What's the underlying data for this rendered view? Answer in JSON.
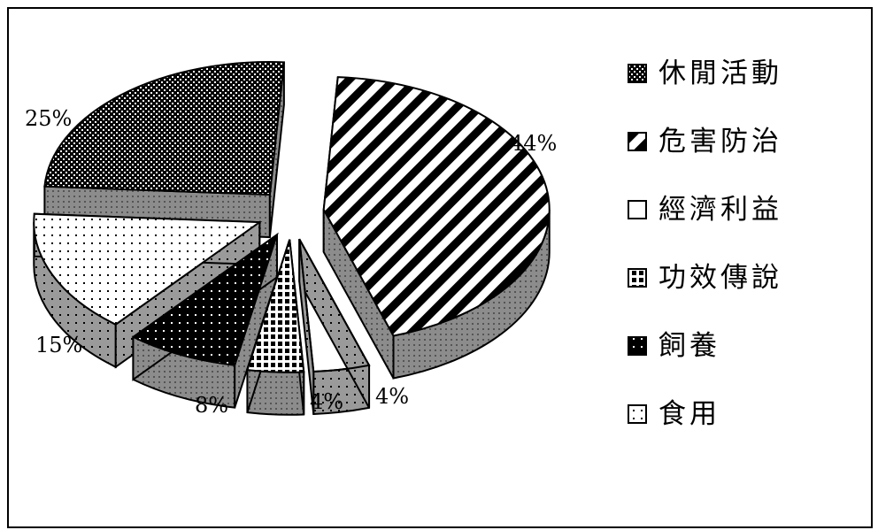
{
  "chart_data": {
    "type": "pie",
    "style": "3d-exploded",
    "title": "",
    "legend_position": "right",
    "slices": [
      {
        "label": "休閒活動",
        "value": 25,
        "text": "25%",
        "pattern": "dots-dense",
        "color": "#000000"
      },
      {
        "label": "危害防治",
        "value": 44,
        "text": "44%",
        "pattern": "diagonal-stripes",
        "color": "#000000"
      },
      {
        "label": "經濟利益",
        "value": 4,
        "text": "4%",
        "pattern": "white",
        "color": "#ffffff"
      },
      {
        "label": "功效傳說",
        "value": 4,
        "text": "4%",
        "pattern": "checker",
        "color": "#000000"
      },
      {
        "label": "飼養",
        "value": 8,
        "text": "8%",
        "pattern": "black-dots",
        "color": "#000000"
      },
      {
        "label": "食用",
        "value": 15,
        "text": "15%",
        "pattern": "white-dots",
        "color": "#ffffff"
      }
    ]
  }
}
